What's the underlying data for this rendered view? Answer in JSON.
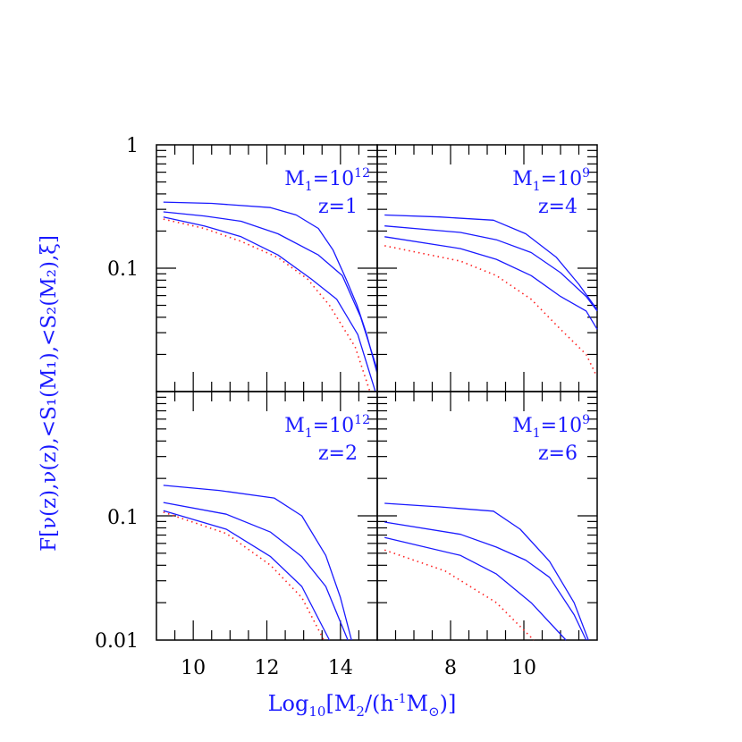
{
  "colors": {
    "solid": "#1a1aff",
    "dotted": "#ff2020",
    "axis": "#000000",
    "label": "#1a1aff"
  },
  "chart_data": {
    "type": "line",
    "xlabel": {
      "prefix": "Log",
      "sub10": "10",
      "body": "[M",
      "sub2": "2",
      "mid": "/(h",
      "sup": "-1",
      "m": "M",
      "sun": "⊙",
      "end": ")]"
    },
    "ylabel": "F[ν(z),ν(z),<S₁(M₁),<S₂(M₂),ξ]",
    "y_scale": "log",
    "ylim": [
      0.01,
      1
    ],
    "y_tick_labels": {
      "top_row": [
        "1",
        "0.1"
      ],
      "bottom_row": [
        "0.1",
        "0.01"
      ]
    },
    "panels": [
      {
        "id": "top-left",
        "label_m1": "M",
        "label_m1_sub": "1",
        "label_m1_eq": "=10",
        "label_m1_exp": "12",
        "label_z": "z=1",
        "xlim": [
          9,
          15
        ],
        "x_ticks": [],
        "series": [
          {
            "style": "solid",
            "x": [
              9.19,
              10.5,
              12.1,
              12.8,
              13.4,
              13.8,
              14.15,
              14.45,
              14.7,
              15.0
            ],
            "y": [
              0.343,
              0.335,
              0.31,
              0.27,
              0.21,
              0.14,
              0.082,
              0.05,
              0.03,
              0.014
            ]
          },
          {
            "style": "solid",
            "x": [
              9.19,
              10.3,
              11.3,
              12.3,
              13.4,
              14.05,
              14.55,
              15.0
            ],
            "y": [
              0.286,
              0.265,
              0.24,
              0.19,
              0.128,
              0.087,
              0.04,
              0.015
            ]
          },
          {
            "style": "solid",
            "x": [
              9.19,
              10.3,
              11.3,
              12.3,
              13.2,
              13.9,
              14.47,
              14.95
            ],
            "y": [
              0.26,
              0.22,
              0.18,
              0.128,
              0.082,
              0.056,
              0.029,
              0.01
            ]
          },
          {
            "style": "dotted",
            "x": [
              9.19,
              10.3,
              11.3,
              12.3,
              13.1,
              13.7,
              14.4,
              14.8
            ],
            "y": [
              0.25,
              0.21,
              0.165,
              0.122,
              0.082,
              0.05,
              0.023,
              0.01
            ]
          }
        ]
      },
      {
        "id": "top-right",
        "label_m1": "M",
        "label_m1_sub": "1",
        "label_m1_eq": "=10",
        "label_m1_exp": "9",
        "label_z": "z=4",
        "xlim": [
          6,
          12
        ],
        "x_ticks": [],
        "series": [
          {
            "style": "solid",
            "x": [
              6.2,
              7.7,
              9.17,
              10.05,
              10.88,
              11.5,
              12.0
            ],
            "y": [
              0.27,
              0.26,
              0.245,
              0.19,
              0.123,
              0.074,
              0.046
            ]
          },
          {
            "style": "solid",
            "x": [
              6.2,
              8.27,
              9.25,
              10.2,
              11.0,
              11.7,
              12.0
            ],
            "y": [
              0.22,
              0.195,
              0.17,
              0.134,
              0.092,
              0.059,
              0.045
            ]
          },
          {
            "style": "solid",
            "x": [
              6.2,
              8.27,
              9.25,
              10.2,
              11.0,
              11.7,
              12.0
            ],
            "y": [
              0.18,
              0.144,
              0.118,
              0.087,
              0.059,
              0.045,
              0.032
            ]
          },
          {
            "style": "dotted",
            "x": [
              6.2,
              8.27,
              9.25,
              10.2,
              11.0,
              11.7,
              11.95
            ],
            "y": [
              0.152,
              0.114,
              0.087,
              0.056,
              0.032,
              0.02,
              0.014
            ]
          }
        ]
      },
      {
        "id": "bottom-left",
        "label_m1": "M",
        "label_m1_sub": "1",
        "label_m1_eq": "=10",
        "label_m1_exp": "12",
        "label_z": "z=2",
        "xlim": [
          9,
          15
        ],
        "x_ticks": [
          "10",
          "12",
          "14"
        ],
        "x_tick_values": [
          10,
          12,
          14
        ],
        "series": [
          {
            "style": "solid",
            "x": [
              9.19,
              10.7,
              12.2,
              12.95,
              13.6,
              14.0,
              14.3
            ],
            "y": [
              0.176,
              0.16,
              0.139,
              0.1,
              0.048,
              0.022,
              0.01
            ]
          },
          {
            "style": "solid",
            "x": [
              9.19,
              10.9,
              12.1,
              12.95,
              13.6,
              14.2
            ],
            "y": [
              0.128,
              0.103,
              0.074,
              0.047,
              0.027,
              0.01
            ]
          },
          {
            "style": "solid",
            "x": [
              9.19,
              10.9,
              12.1,
              12.95,
              13.7
            ],
            "y": [
              0.11,
              0.078,
              0.047,
              0.027,
              0.01
            ]
          },
          {
            "style": "dotted",
            "x": [
              9.19,
              10.9,
              12.1,
              12.95,
              13.55
            ],
            "y": [
              0.107,
              0.072,
              0.04,
              0.022,
              0.01
            ]
          }
        ]
      },
      {
        "id": "bottom-right",
        "label_m1": "M",
        "label_m1_sub": "1",
        "label_m1_eq": "=10",
        "label_m1_exp": "9",
        "label_z": "z=6",
        "xlim": [
          6,
          12
        ],
        "x_ticks": [
          "8",
          "10"
        ],
        "x_tick_values": [
          8,
          10
        ],
        "series": [
          {
            "style": "solid",
            "x": [
              6.2,
              7.7,
              9.17,
              9.9,
              10.7,
              11.37,
              11.76
            ],
            "y": [
              0.126,
              0.118,
              0.109,
              0.078,
              0.043,
              0.02,
              0.01
            ]
          },
          {
            "style": "solid",
            "x": [
              6.2,
              8.27,
              9.25,
              10.05,
              10.7,
              11.37,
              11.7
            ],
            "y": [
              0.089,
              0.071,
              0.056,
              0.044,
              0.032,
              0.016,
              0.01
            ]
          },
          {
            "style": "solid",
            "x": [
              6.2,
              8.27,
              9.25,
              10.2,
              11.15
            ],
            "y": [
              0.067,
              0.048,
              0.034,
              0.02,
              0.01
            ]
          },
          {
            "style": "dotted",
            "x": [
              6.2,
              7.85,
              9.25,
              10.27
            ],
            "y": [
              0.053,
              0.036,
              0.02,
              0.01
            ]
          }
        ]
      }
    ]
  }
}
